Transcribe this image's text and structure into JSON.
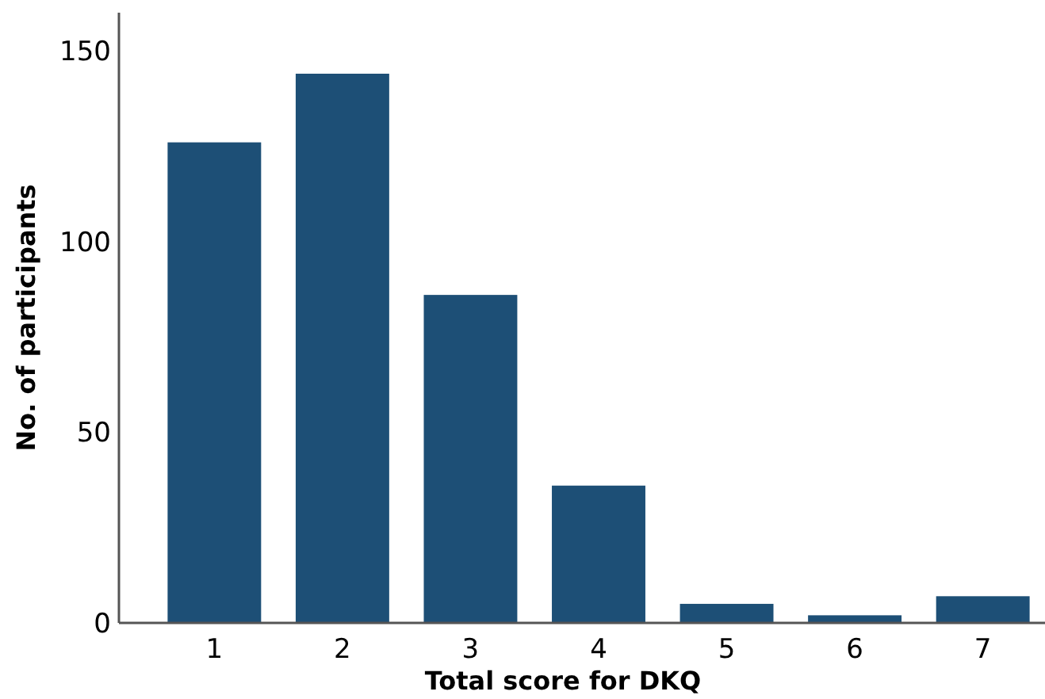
{
  "chart_data": {
    "type": "bar",
    "xlabel": "Total score for DKQ",
    "ylabel": "No. of participants",
    "categories": [
      "1",
      "2",
      "3",
      "4",
      "5",
      "6",
      "7"
    ],
    "values": [
      126,
      144,
      86,
      36,
      5,
      2,
      7
    ],
    "color": "#1d4f76",
    "ylim": [
      0,
      160
    ],
    "yticks": [
      0,
      50,
      100,
      150
    ],
    "grid": false
  }
}
